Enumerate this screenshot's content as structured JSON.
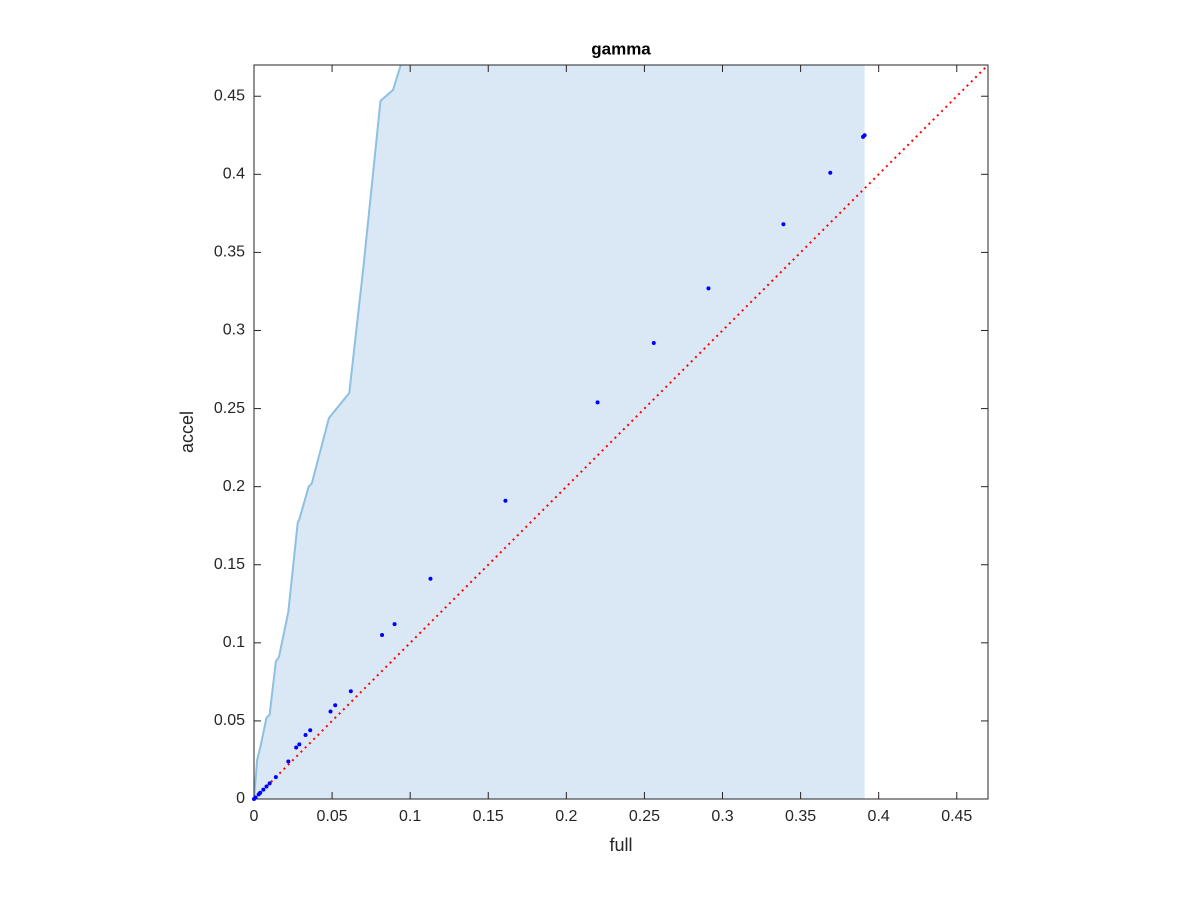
{
  "chart_data": {
    "type": "scatter",
    "title": "gamma",
    "xlabel": "full",
    "ylabel": "accel",
    "xlim": [
      0,
      0.47
    ],
    "ylim": [
      0,
      0.47
    ],
    "xticks": [
      0,
      0.05,
      0.1,
      0.15,
      0.2,
      0.25,
      0.3,
      0.35,
      0.4,
      0.45
    ],
    "yticks": [
      0,
      0.05,
      0.1,
      0.15,
      0.2,
      0.25,
      0.3,
      0.35,
      0.4,
      0.45
    ],
    "area": {
      "color": "#d9e8f4",
      "edge_color": "#8ec0e0",
      "x": [
        0,
        0.002,
        0.004,
        0.008,
        0.01,
        0.014,
        0.016,
        0.022,
        0.028,
        0.029,
        0.035,
        0.037,
        0.048,
        0.061,
        0.07,
        0.081,
        0.089,
        0.094,
        0.391,
        0.391
      ],
      "y": [
        0,
        0.025,
        0.033,
        0.052,
        0.054,
        0.088,
        0.091,
        0.12,
        0.177,
        0.179,
        0.2,
        0.202,
        0.244,
        0.26,
        0.34,
        0.447,
        0.454,
        0.47,
        0.47,
        0
      ]
    },
    "series": [
      {
        "color": "#0000ff",
        "x": [
          0,
          0.001,
          0.003,
          0.004,
          0.006,
          0.008,
          0.01,
          0.014,
          0.022,
          0.027,
          0.029,
          0.033,
          0.036,
          0.049,
          0.052,
          0.062,
          0.082,
          0.09,
          0.113,
          0.161,
          0.22,
          0.256,
          0.291,
          0.339,
          0.369,
          0.39,
          0.391
        ],
        "values": [
          0,
          0.001,
          0.003,
          0.004,
          0.006,
          0.008,
          0.01,
          0.014,
          0.024,
          0.033,
          0.035,
          0.041,
          0.044,
          0.056,
          0.06,
          0.069,
          0.105,
          0.112,
          0.141,
          0.191,
          0.254,
          0.292,
          0.327,
          0.368,
          0.401,
          0.424,
          0.425
        ]
      }
    ],
    "reference_line": {
      "color": "#ff0000",
      "x": [
        0,
        0.47
      ],
      "y": [
        0,
        0.47
      ]
    }
  }
}
